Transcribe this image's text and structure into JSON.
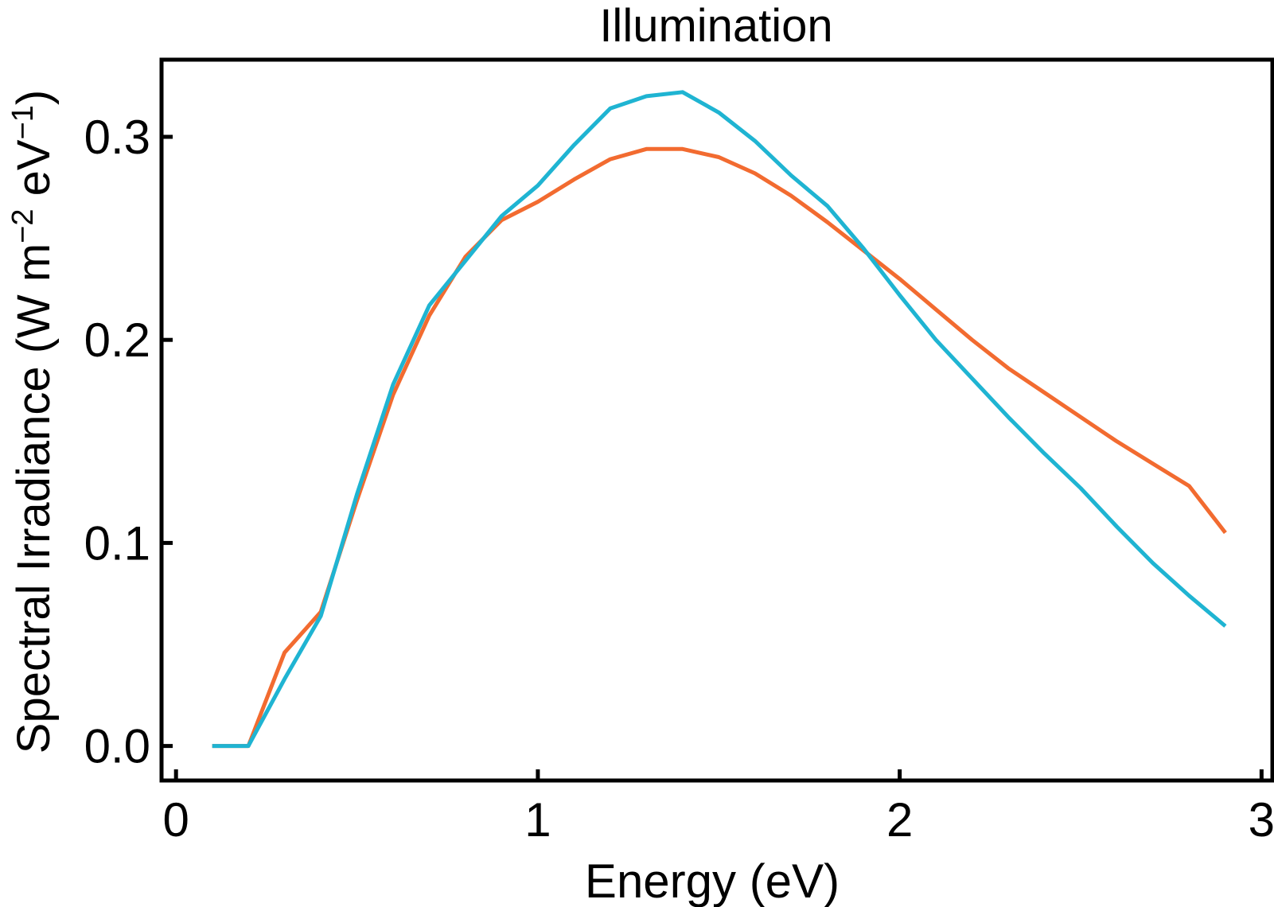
{
  "chart_data": {
    "type": "line",
    "title": "Illumination",
    "xlabel": "Energy (eV)",
    "ylabel": {
      "base": "Spectral Irradiance (W m",
      "exp1": "−2",
      "mid": " eV",
      "exp2": "−1",
      "close": ")"
    },
    "xlim": [
      -0.04,
      3.03
    ],
    "ylim": [
      -0.017,
      0.338
    ],
    "xticks": [
      0,
      1,
      2,
      3
    ],
    "xtick_labels": [
      "0",
      "1",
      "2",
      "3"
    ],
    "yticks": [
      0.0,
      0.1,
      0.2,
      0.3
    ],
    "ytick_labels": [
      "0.0",
      "0.1",
      "0.2",
      "0.3"
    ],
    "grid": false,
    "legend": "none",
    "series": [
      {
        "color": "#f26b30",
        "x": [
          0.1,
          0.2,
          0.3,
          0.4,
          0.5,
          0.6,
          0.7,
          0.8,
          0.9,
          1.0,
          1.1,
          1.2,
          1.3,
          1.4,
          1.5,
          1.6,
          1.7,
          1.8,
          1.9,
          2.0,
          2.1,
          2.2,
          2.3,
          2.4,
          2.5,
          2.6,
          2.7,
          2.8,
          2.9
        ],
        "y": [
          0.0,
          0.0,
          0.046,
          0.066,
          0.121,
          0.173,
          0.212,
          0.241,
          0.259,
          0.268,
          0.279,
          0.289,
          0.294,
          0.294,
          0.29,
          0.282,
          0.271,
          0.258,
          0.244,
          0.23,
          0.215,
          0.2,
          0.186,
          0.174,
          0.162,
          0.15,
          0.139,
          0.128,
          0.105
        ]
      },
      {
        "color": "#1fb4d2",
        "x": [
          0.1,
          0.2,
          0.3,
          0.4,
          0.5,
          0.6,
          0.7,
          0.8,
          0.9,
          1.0,
          1.1,
          1.2,
          1.3,
          1.4,
          1.5,
          1.6,
          1.7,
          1.8,
          1.9,
          2.0,
          2.1,
          2.2,
          2.3,
          2.4,
          2.5,
          2.6,
          2.7,
          2.8,
          2.9
        ],
        "y": [
          0.0,
          0.0,
          0.033,
          0.064,
          0.124,
          0.178,
          0.217,
          0.239,
          0.261,
          0.276,
          0.296,
          0.314,
          0.32,
          0.322,
          0.312,
          0.298,
          0.281,
          0.266,
          0.245,
          0.222,
          0.2,
          0.181,
          0.162,
          0.144,
          0.127,
          0.108,
          0.09,
          0.074,
          0.059
        ]
      }
    ]
  }
}
